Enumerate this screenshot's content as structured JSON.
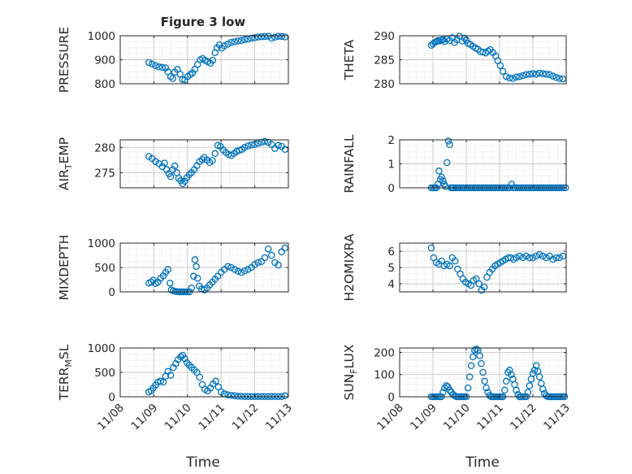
{
  "figure": {
    "title": "Figure 3 low",
    "xlabel_left": "Time",
    "xlabel_right": "Time",
    "marker_color": "#0072BD",
    "axis_color": "#262626",
    "grid_color": "#dcdcdc"
  },
  "chart_data": [
    {
      "type": "scatter",
      "name": "PRESSURE",
      "ylabel": "PRESSURE",
      "ylim": [
        800,
        1000
      ],
      "yticks": [
        800,
        900,
        1000
      ],
      "xlim": [
        8,
        13
      ],
      "x": [
        8.85,
        8.95,
        9.05,
        9.15,
        9.25,
        9.35,
        9.42,
        9.5,
        9.56,
        9.62,
        9.7,
        9.78,
        9.85,
        9.92,
        10.0,
        10.08,
        10.15,
        10.22,
        10.3,
        10.38,
        10.45,
        10.52,
        10.6,
        10.68,
        10.75,
        10.82,
        10.88,
        10.95,
        11.02,
        11.1,
        11.2,
        11.3,
        11.4,
        11.5,
        11.6,
        11.7,
        11.8,
        11.9,
        12.0,
        12.1,
        12.2,
        12.3,
        12.4,
        12.5,
        12.6,
        12.7,
        12.8,
        12.9
      ],
      "y": [
        888,
        882,
        876,
        870,
        868,
        866,
        850,
        830,
        822,
        848,
        860,
        840,
        818,
        816,
        830,
        838,
        845,
        860,
        880,
        900,
        905,
        898,
        892,
        885,
        898,
        930,
        950,
        962,
        948,
        958,
        965,
        972,
        975,
        978,
        980,
        984,
        986,
        990,
        992,
        995,
        996,
        997,
        998,
        990,
        994,
        998,
        997,
        995
      ]
    },
    {
      "type": "scatter",
      "name": "THETA",
      "ylabel": "THETA",
      "ylim": [
        280,
        290
      ],
      "yticks": [
        280,
        285,
        290
      ],
      "xlim": [
        8,
        13
      ],
      "x": [
        8.95,
        9.0,
        9.05,
        9.1,
        9.15,
        9.2,
        9.25,
        9.3,
        9.35,
        9.42,
        9.5,
        9.58,
        9.65,
        9.72,
        9.8,
        9.88,
        9.95,
        10.0,
        10.05,
        10.12,
        10.2,
        10.28,
        10.35,
        10.42,
        10.5,
        10.58,
        10.65,
        10.72,
        10.8,
        10.88,
        10.95,
        11.02,
        11.1,
        11.2,
        11.3,
        11.4,
        11.5,
        11.6,
        11.7,
        11.8,
        11.9,
        12.0,
        12.1,
        12.2,
        12.3,
        12.4,
        12.5,
        12.6,
        12.7,
        12.8,
        12.9
      ],
      "y": [
        288,
        288.3,
        288.6,
        288.8,
        289,
        288.9,
        289.1,
        289.2,
        288.8,
        289.3,
        289.0,
        289.6,
        288.6,
        289.2,
        289.9,
        288.9,
        289.5,
        289.1,
        288.4,
        288.2,
        287.8,
        287.4,
        287.2,
        286.7,
        286.6,
        286.4,
        286.8,
        287.1,
        286.5,
        285.8,
        284.8,
        283.8,
        282.6,
        281.5,
        281.2,
        281.1,
        281.4,
        281.5,
        281.7,
        281.9,
        282.0,
        282.1,
        282.0,
        282.2,
        282.1,
        282.0,
        281.9,
        281.6,
        281.3,
        281.1,
        281.0
      ]
    },
    {
      "type": "scatter",
      "name": "AIR_TEMP",
      "ylabel": "AIR_TEMP",
      "ylim": [
        272,
        281.5
      ],
      "yticks": [
        275,
        280
      ],
      "xlim": [
        8,
        13
      ],
      "x": [
        8.85,
        8.95,
        9.05,
        9.15,
        9.25,
        9.32,
        9.38,
        9.45,
        9.5,
        9.56,
        9.62,
        9.68,
        9.74,
        9.8,
        9.86,
        9.92,
        9.98,
        10.05,
        10.12,
        10.2,
        10.28,
        10.36,
        10.44,
        10.5,
        10.58,
        10.66,
        10.74,
        10.82,
        10.9,
        10.98,
        11.06,
        11.14,
        11.22,
        11.3,
        11.38,
        11.46,
        11.54,
        11.62,
        11.7,
        11.8,
        11.9,
        12.0,
        12.1,
        12.2,
        12.3,
        12.4,
        12.5,
        12.6,
        12.7,
        12.8,
        12.9
      ],
      "y": [
        278.2,
        277.8,
        277.2,
        276.8,
        276.2,
        276.9,
        275.6,
        274.8,
        274.2,
        275.6,
        276.3,
        275.0,
        273.9,
        273.4,
        272.8,
        273.3,
        274.0,
        274.6,
        275.0,
        275.6,
        276.4,
        277.2,
        277.6,
        278.0,
        277.5,
        277.0,
        277.4,
        278.8,
        280.4,
        280.2,
        279.5,
        279.0,
        278.6,
        278.4,
        278.8,
        279.2,
        279.4,
        279.6,
        280.0,
        280.3,
        280.5,
        280.6,
        280.8,
        281.0,
        281.2,
        281.0,
        280.6,
        279.8,
        280.4,
        280.2,
        279.6
      ]
    },
    {
      "type": "scatter",
      "name": "RAINFALL",
      "ylabel": "RAINFALL",
      "ylim": [
        0,
        2
      ],
      "yticks": [
        0,
        1,
        2
      ],
      "xlim": [
        8,
        13
      ],
      "x": [
        8.95,
        9.0,
        9.05,
        9.1,
        9.15,
        9.18,
        9.22,
        9.26,
        9.3,
        9.34,
        9.38,
        9.42,
        9.46,
        9.5,
        9.54,
        9.58,
        9.62,
        9.68,
        9.74,
        9.8,
        9.86,
        9.92,
        9.98,
        10.04,
        10.1,
        10.16,
        10.22,
        10.28,
        10.34,
        10.4,
        10.46,
        10.52,
        10.58,
        10.64,
        10.7,
        10.76,
        10.82,
        10.88,
        10.94,
        11.0,
        11.06,
        11.12,
        11.18,
        11.24,
        11.3,
        11.36,
        11.42,
        11.48,
        11.54,
        11.6,
        11.66,
        11.72,
        11.78,
        11.84,
        11.9,
        11.96,
        12.02,
        12.08,
        12.14,
        12.2,
        12.26,
        12.32,
        12.38,
        12.44,
        12.5,
        12.56,
        12.62,
        12.68,
        12.74,
        12.8,
        12.86,
        12.92,
        12.98
      ],
      "y": [
        0,
        0,
        0,
        0,
        0.15,
        0.7,
        0.35,
        0.45,
        0.3,
        0.15,
        0.05,
        1.05,
        1.95,
        1.8,
        0,
        0,
        0,
        0,
        0,
        0,
        0,
        0,
        0,
        0,
        0,
        0,
        0,
        0,
        0,
        0,
        0,
        0,
        0,
        0,
        0,
        0,
        0,
        0,
        0,
        0,
        0,
        0,
        0,
        0,
        0,
        0.15,
        0,
        0,
        0,
        0,
        0,
        0,
        0,
        0,
        0,
        0,
        0,
        0,
        0,
        0,
        0,
        0,
        0,
        0,
        0,
        0,
        0,
        0,
        0,
        0,
        0,
        0,
        0
      ]
    },
    {
      "type": "scatter",
      "name": "MIXDEPTH",
      "ylabel": "MIXDEPTH",
      "ylim": [
        0,
        1000
      ],
      "yticks": [
        0,
        500,
        1000
      ],
      "xlim": [
        8,
        13
      ],
      "x": [
        8.85,
        8.92,
        8.98,
        9.05,
        9.12,
        9.2,
        9.28,
        9.35,
        9.42,
        9.48,
        9.52,
        9.58,
        9.64,
        9.7,
        9.76,
        9.82,
        9.88,
        9.94,
        10.0,
        10.06,
        10.12,
        10.18,
        10.22,
        10.26,
        10.3,
        10.35,
        10.42,
        10.5,
        10.58,
        10.66,
        10.74,
        10.82,
        10.9,
        11.0,
        11.1,
        11.2,
        11.3,
        11.4,
        11.5,
        11.6,
        11.7,
        11.8,
        11.9,
        12.0,
        12.1,
        12.2,
        12.3,
        12.4,
        12.5,
        12.6,
        12.7,
        12.8,
        12.9
      ],
      "y": [
        180,
        200,
        240,
        170,
        200,
        280,
        330,
        400,
        460,
        180,
        40,
        20,
        10,
        5,
        0,
        0,
        0,
        0,
        0,
        0,
        80,
        320,
        660,
        520,
        280,
        120,
        60,
        40,
        80,
        140,
        200,
        260,
        320,
        400,
        460,
        520,
        500,
        460,
        420,
        400,
        430,
        460,
        500,
        560,
        600,
        620,
        700,
        880,
        750,
        600,
        550,
        820,
        900
      ]
    },
    {
      "type": "scatter",
      "name": "H2OMIXRA",
      "ylabel": "H2OMIXRA",
      "ylim": [
        3.5,
        6.5
      ],
      "yticks": [
        4,
        5,
        6
      ],
      "xlim": [
        8,
        13
      ],
      "x": [
        8.95,
        9.02,
        9.1,
        9.18,
        9.26,
        9.34,
        9.42,
        9.5,
        9.58,
        9.66,
        9.74,
        9.82,
        9.9,
        9.98,
        10.06,
        10.14,
        10.22,
        10.3,
        10.38,
        10.46,
        10.54,
        10.62,
        10.7,
        10.78,
        10.86,
        10.94,
        11.02,
        11.1,
        11.18,
        11.26,
        11.34,
        11.42,
        11.5,
        11.6,
        11.7,
        11.8,
        11.9,
        12.0,
        12.1,
        12.2,
        12.3,
        12.4,
        12.5,
        12.6,
        12.7,
        12.8,
        12.9
      ],
      "y": [
        6.2,
        5.6,
        5.3,
        5.2,
        5.4,
        5.1,
        5.2,
        5.1,
        5.6,
        5.4,
        4.9,
        4.6,
        4.3,
        4.1,
        4.0,
        3.9,
        4.2,
        4.3,
        4.0,
        3.6,
        3.8,
        4.4,
        4.7,
        4.9,
        5.1,
        5.2,
        5.3,
        5.4,
        5.5,
        5.6,
        5.6,
        5.5,
        5.6,
        5.7,
        5.6,
        5.7,
        5.6,
        5.6,
        5.7,
        5.8,
        5.7,
        5.6,
        5.7,
        5.5,
        5.6,
        5.6,
        5.7
      ]
    },
    {
      "type": "scatter",
      "name": "TERR_MSL",
      "ylabel": "TERR_MSL",
      "ylim": [
        0,
        1000
      ],
      "yticks": [
        0,
        500,
        1000
      ],
      "xlim": [
        8,
        13
      ],
      "x": [
        8.85,
        8.92,
        8.98,
        9.05,
        9.12,
        9.2,
        9.28,
        9.35,
        9.42,
        9.5,
        9.58,
        9.65,
        9.72,
        9.8,
        9.86,
        9.92,
        9.98,
        10.05,
        10.12,
        10.2,
        10.28,
        10.36,
        10.44,
        10.52,
        10.6,
        10.68,
        10.76,
        10.84,
        10.92,
        11.0,
        11.1,
        11.2,
        11.3,
        11.4,
        11.5,
        11.6,
        11.7,
        11.8,
        11.9,
        12.0,
        12.1,
        12.2,
        12.3,
        12.4,
        12.5,
        12.6,
        12.7,
        12.8,
        12.9
      ],
      "y": [
        100,
        120,
        180,
        240,
        300,
        320,
        300,
        420,
        520,
        440,
        600,
        680,
        760,
        820,
        850,
        780,
        700,
        650,
        600,
        550,
        500,
        400,
        250,
        150,
        120,
        180,
        260,
        320,
        200,
        100,
        60,
        40,
        30,
        20,
        10,
        8,
        5,
        5,
        5,
        5,
        5,
        5,
        5,
        5,
        5,
        5,
        5,
        5,
        20
      ]
    },
    {
      "type": "scatter",
      "name": "SUN_FLUX",
      "ylabel": "SUN_FLUX",
      "ylim": [
        0,
        220
      ],
      "yticks": [
        0,
        100,
        200
      ],
      "xlim": [
        8,
        13
      ],
      "x": [
        8.95,
        9.0,
        9.05,
        9.1,
        9.15,
        9.2,
        9.25,
        9.3,
        9.35,
        9.4,
        9.45,
        9.5,
        9.55,
        9.6,
        9.65,
        9.7,
        9.75,
        9.8,
        9.85,
        9.9,
        9.95,
        10.0,
        10.05,
        10.1,
        10.15,
        10.2,
        10.25,
        10.3,
        10.35,
        10.4,
        10.45,
        10.5,
        10.55,
        10.6,
        10.65,
        10.7,
        10.75,
        10.8,
        10.85,
        10.9,
        10.95,
        11.0,
        11.05,
        11.1,
        11.15,
        11.2,
        11.25,
        11.3,
        11.35,
        11.4,
        11.45,
        11.5,
        11.55,
        11.6,
        11.65,
        11.7,
        11.75,
        11.8,
        11.85,
        11.9,
        11.95,
        12.0,
        12.05,
        12.1,
        12.15,
        12.2,
        12.25,
        12.3,
        12.35,
        12.4,
        12.45,
        12.5,
        12.55,
        12.6,
        12.65,
        12.7,
        12.75,
        12.8,
        12.85,
        12.9,
        12.95
      ],
      "y": [
        0,
        0,
        0,
        0,
        0,
        0,
        0,
        20,
        40,
        50,
        45,
        30,
        20,
        10,
        5,
        0,
        0,
        0,
        0,
        0,
        0,
        0,
        40,
        90,
        140,
        180,
        210,
        215,
        210,
        185,
        150,
        110,
        70,
        40,
        20,
        5,
        0,
        0,
        0,
        0,
        0,
        0,
        0,
        0,
        30,
        70,
        110,
        120,
        100,
        80,
        55,
        30,
        10,
        0,
        0,
        0,
        0,
        0,
        20,
        50,
        80,
        105,
        120,
        140,
        115,
        90,
        60,
        35,
        15,
        5,
        0,
        0,
        0,
        0,
        0,
        0,
        0,
        0,
        0,
        0,
        0
      ]
    }
  ]
}
